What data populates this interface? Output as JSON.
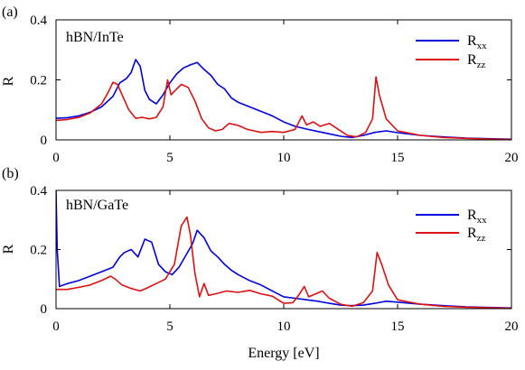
{
  "chart_data": [
    {
      "panel_label": "(a)",
      "type": "line",
      "title": "",
      "annotation": "hBN/InTe",
      "xlabel": "",
      "ylabel": "R",
      "xlim": [
        0,
        20
      ],
      "ylim": [
        0,
        0.4
      ],
      "xticks": [
        "0",
        "5",
        "10",
        "15",
        "20"
      ],
      "yticks": [
        "0",
        "0.2",
        "0.4"
      ],
      "grid": false,
      "legend_position": "top-right",
      "series": [
        {
          "name": "Rxx",
          "label_main": "R",
          "label_sub": "xx",
          "color": "#0000dd",
          "points": [
            [
              0,
              0.072
            ],
            [
              0.5,
              0.074
            ],
            [
              1.0,
              0.08
            ],
            [
              1.5,
              0.092
            ],
            [
              2.0,
              0.11
            ],
            [
              2.5,
              0.145
            ],
            [
              2.8,
              0.19
            ],
            [
              3.1,
              0.205
            ],
            [
              3.3,
              0.225
            ],
            [
              3.5,
              0.268
            ],
            [
              3.7,
              0.245
            ],
            [
              3.9,
              0.165
            ],
            [
              4.1,
              0.135
            ],
            [
              4.4,
              0.12
            ],
            [
              4.7,
              0.15
            ],
            [
              5.0,
              0.19
            ],
            [
              5.3,
              0.22
            ],
            [
              5.6,
              0.24
            ],
            [
              5.9,
              0.25
            ],
            [
              6.2,
              0.258
            ],
            [
              6.5,
              0.235
            ],
            [
              6.8,
              0.215
            ],
            [
              7.1,
              0.185
            ],
            [
              7.4,
              0.17
            ],
            [
              7.7,
              0.14
            ],
            [
              8.0,
              0.125
            ],
            [
              8.5,
              0.11
            ],
            [
              9.0,
              0.095
            ],
            [
              9.5,
              0.08
            ],
            [
              10.0,
              0.06
            ],
            [
              10.5,
              0.045
            ],
            [
              11.0,
              0.036
            ],
            [
              11.5,
              0.028
            ],
            [
              12.0,
              0.02
            ],
            [
              12.5,
              0.012
            ],
            [
              13.0,
              0.008
            ],
            [
              13.5,
              0.015
            ],
            [
              14.0,
              0.025
            ],
            [
              14.5,
              0.03
            ],
            [
              15.0,
              0.024
            ],
            [
              16.0,
              0.015
            ],
            [
              17.0,
              0.01
            ],
            [
              18.0,
              0.006
            ],
            [
              19.0,
              0.004
            ],
            [
              20.0,
              0.002
            ]
          ]
        },
        {
          "name": "Rzz",
          "label_main": "R",
          "label_sub": "zz",
          "color": "#dd1111",
          "points": [
            [
              0,
              0.065
            ],
            [
              0.5,
              0.068
            ],
            [
              1.0,
              0.075
            ],
            [
              1.5,
              0.09
            ],
            [
              2.0,
              0.12
            ],
            [
              2.3,
              0.16
            ],
            [
              2.5,
              0.192
            ],
            [
              2.7,
              0.185
            ],
            [
              2.9,
              0.15
            ],
            [
              3.2,
              0.1
            ],
            [
              3.5,
              0.072
            ],
            [
              3.8,
              0.075
            ],
            [
              4.1,
              0.07
            ],
            [
              4.4,
              0.075
            ],
            [
              4.7,
              0.11
            ],
            [
              4.9,
              0.2
            ],
            [
              5.05,
              0.15
            ],
            [
              5.3,
              0.17
            ],
            [
              5.5,
              0.185
            ],
            [
              5.8,
              0.175
            ],
            [
              6.1,
              0.13
            ],
            [
              6.4,
              0.07
            ],
            [
              6.7,
              0.04
            ],
            [
              7.0,
              0.03
            ],
            [
              7.3,
              0.035
            ],
            [
              7.6,
              0.055
            ],
            [
              8.0,
              0.048
            ],
            [
              8.4,
              0.035
            ],
            [
              9.0,
              0.025
            ],
            [
              9.5,
              0.028
            ],
            [
              10.0,
              0.025
            ],
            [
              10.5,
              0.035
            ],
            [
              10.8,
              0.08
            ],
            [
              11.0,
              0.05
            ],
            [
              11.3,
              0.06
            ],
            [
              11.6,
              0.045
            ],
            [
              12.0,
              0.055
            ],
            [
              12.4,
              0.035
            ],
            [
              12.8,
              0.015
            ],
            [
              13.2,
              0.01
            ],
            [
              13.6,
              0.025
            ],
            [
              13.9,
              0.07
            ],
            [
              14.05,
              0.21
            ],
            [
              14.2,
              0.15
            ],
            [
              14.5,
              0.07
            ],
            [
              15.0,
              0.03
            ],
            [
              16.0,
              0.015
            ],
            [
              17.0,
              0.008
            ],
            [
              18.0,
              0.005
            ],
            [
              19.0,
              0.003
            ],
            [
              20.0,
              0.001
            ]
          ]
        }
      ]
    },
    {
      "panel_label": "(b)",
      "type": "line",
      "title": "",
      "annotation": "hBN/GaTe",
      "xlabel": "Energy [eV]",
      "ylabel": "R",
      "xlim": [
        0,
        20
      ],
      "ylim": [
        0,
        0.4
      ],
      "xticks": [
        "0",
        "5",
        "10",
        "15",
        "20"
      ],
      "yticks": [
        "0",
        "0.2",
        "0.4"
      ],
      "grid": false,
      "legend_position": "top-right",
      "series": [
        {
          "name": "Rxx",
          "label_main": "R",
          "label_sub": "xx",
          "color": "#0000dd",
          "points": [
            [
              0,
              0.4
            ],
            [
              0.05,
              0.2
            ],
            [
              0.15,
              0.075
            ],
            [
              0.5,
              0.085
            ],
            [
              1.0,
              0.095
            ],
            [
              1.5,
              0.11
            ],
            [
              2.0,
              0.125
            ],
            [
              2.5,
              0.14
            ],
            [
              2.8,
              0.175
            ],
            [
              3.0,
              0.19
            ],
            [
              3.3,
              0.2
            ],
            [
              3.6,
              0.175
            ],
            [
              3.9,
              0.235
            ],
            [
              4.2,
              0.225
            ],
            [
              4.5,
              0.15
            ],
            [
              4.8,
              0.125
            ],
            [
              5.1,
              0.115
            ],
            [
              5.4,
              0.14
            ],
            [
              5.7,
              0.18
            ],
            [
              6.0,
              0.22
            ],
            [
              6.2,
              0.265
            ],
            [
              6.5,
              0.24
            ],
            [
              6.8,
              0.195
            ],
            [
              7.1,
              0.175
            ],
            [
              7.4,
              0.15
            ],
            [
              7.7,
              0.13
            ],
            [
              8.0,
              0.115
            ],
            [
              8.5,
              0.095
            ],
            [
              9.0,
              0.08
            ],
            [
              9.5,
              0.06
            ],
            [
              10.0,
              0.04
            ],
            [
              10.5,
              0.035
            ],
            [
              11.0,
              0.03
            ],
            [
              11.5,
              0.025
            ],
            [
              12.0,
              0.018
            ],
            [
              12.5,
              0.012
            ],
            [
              13.0,
              0.01
            ],
            [
              13.5,
              0.012
            ],
            [
              14.0,
              0.018
            ],
            [
              14.5,
              0.025
            ],
            [
              15.0,
              0.022
            ],
            [
              16.0,
              0.015
            ],
            [
              17.0,
              0.01
            ],
            [
              18.0,
              0.006
            ],
            [
              19.0,
              0.004
            ],
            [
              20.0,
              0.002
            ]
          ]
        },
        {
          "name": "Rzz",
          "label_main": "R",
          "label_sub": "zz",
          "color": "#dd1111",
          "points": [
            [
              0,
              0.065
            ],
            [
              0.5,
              0.065
            ],
            [
              1.0,
              0.072
            ],
            [
              1.5,
              0.08
            ],
            [
              2.0,
              0.095
            ],
            [
              2.4,
              0.11
            ],
            [
              2.6,
              0.1
            ],
            [
              2.9,
              0.08
            ],
            [
              3.3,
              0.068
            ],
            [
              3.7,
              0.06
            ],
            [
              4.0,
              0.07
            ],
            [
              4.4,
              0.085
            ],
            [
              4.8,
              0.1
            ],
            [
              5.2,
              0.15
            ],
            [
              5.5,
              0.28
            ],
            [
              5.75,
              0.31
            ],
            [
              5.9,
              0.25
            ],
            [
              6.1,
              0.12
            ],
            [
              6.3,
              0.04
            ],
            [
              6.5,
              0.085
            ],
            [
              6.7,
              0.045
            ],
            [
              7.0,
              0.05
            ],
            [
              7.5,
              0.06
            ],
            [
              8.0,
              0.055
            ],
            [
              8.5,
              0.062
            ],
            [
              9.0,
              0.05
            ],
            [
              9.5,
              0.042
            ],
            [
              10.0,
              0.018
            ],
            [
              10.4,
              0.02
            ],
            [
              10.7,
              0.05
            ],
            [
              10.9,
              0.075
            ],
            [
              11.1,
              0.04
            ],
            [
              11.4,
              0.05
            ],
            [
              11.7,
              0.06
            ],
            [
              12.0,
              0.035
            ],
            [
              12.5,
              0.015
            ],
            [
              13.0,
              0.008
            ],
            [
              13.5,
              0.02
            ],
            [
              13.9,
              0.06
            ],
            [
              14.1,
              0.19
            ],
            [
              14.3,
              0.15
            ],
            [
              14.6,
              0.08
            ],
            [
              15.0,
              0.03
            ],
            [
              16.0,
              0.015
            ],
            [
              17.0,
              0.008
            ],
            [
              18.0,
              0.005
            ],
            [
              19.0,
              0.003
            ],
            [
              20.0,
              0.001
            ]
          ]
        }
      ]
    }
  ]
}
